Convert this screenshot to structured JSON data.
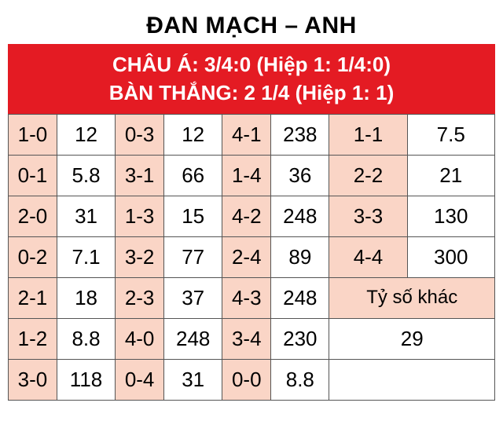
{
  "title": "ĐAN MẠCH – ANH",
  "header": {
    "line1": "CHÂU Á: 3/4:0 (Hiệp 1: 1/4:0)",
    "line2": "BÀN THẮNG: 2 1/4 (Hiệp 1: 1)"
  },
  "columns": [
    {
      "width_pct": 10,
      "is_score": true
    },
    {
      "width_pct": 12,
      "is_score": false
    },
    {
      "width_pct": 10,
      "is_score": true
    },
    {
      "width_pct": 12,
      "is_score": false
    },
    {
      "width_pct": 10,
      "is_score": true
    },
    {
      "width_pct": 12,
      "is_score": false
    },
    {
      "width_pct": 16,
      "is_score": true
    },
    {
      "width_pct": 18,
      "is_score": false
    }
  ],
  "rows": [
    [
      "1-0",
      "12",
      "0-3",
      "12",
      "4-1",
      "238",
      "1-1",
      "7.5"
    ],
    [
      "0-1",
      "5.8",
      "3-1",
      "66",
      "1-4",
      "36",
      "2-2",
      "21"
    ],
    [
      "2-0",
      "31",
      "1-3",
      "15",
      "4-2",
      "248",
      "3-3",
      "130"
    ],
    [
      "0-2",
      "7.1",
      "3-2",
      "77",
      "2-4",
      "89",
      "4-4",
      "300"
    ]
  ],
  "row5": {
    "cells": [
      "2-1",
      "18",
      "2-3",
      "37",
      "4-3",
      "248"
    ],
    "other_label": "Tỷ số khác"
  },
  "row6": {
    "cells": [
      "1-2",
      "8.8",
      "4-0",
      "248",
      "3-4",
      "230"
    ],
    "other_odds": "29"
  },
  "row7": {
    "cells": [
      "3-0",
      "118",
      "0-4",
      "31",
      "0-0",
      "8.8"
    ]
  },
  "colors": {
    "header_bg": "#e41b23",
    "header_fg": "#ffffff",
    "score_bg": "#fad5c6",
    "odds_bg": "#ffffff",
    "border": "#555555",
    "title_fg": "#000000"
  }
}
